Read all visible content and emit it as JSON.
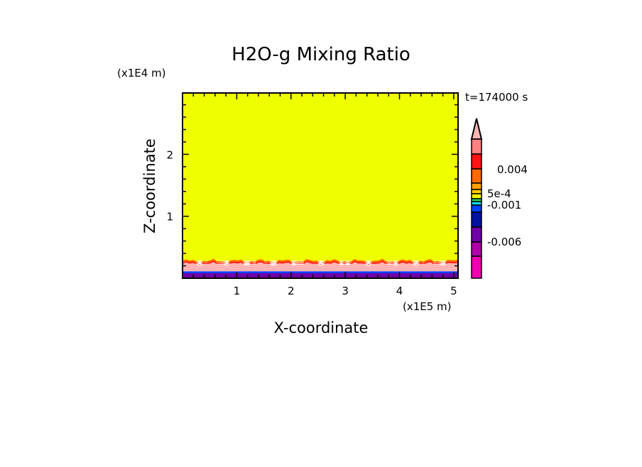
{
  "chart_data": {
    "type": "heatmap",
    "title": "H2O-g Mixing Ratio",
    "xlabel": "X-coordinate",
    "ylabel": "Z-coordinate",
    "x_unit": "(x1E5 m)",
    "y_unit": "(x1E4 m)",
    "time_label": "t=174000 s",
    "xlim": [
      0,
      5.08
    ],
    "ylim": [
      0,
      2.99
    ],
    "x_ticks": [
      "1",
      "2",
      "3",
      "4",
      "5"
    ],
    "y_ticks": [
      "1",
      "2"
    ],
    "colorbar": {
      "labels": [
        "0.004",
        "5e-4",
        "-0.001",
        "-0.006"
      ],
      "colors_top_to_bottom": [
        "#ffb4b4",
        "#ff8080",
        "#ff1414",
        "#ff6a00",
        "#ffa000",
        "#ffcc00",
        "#f0f000",
        "#20e060",
        "#10d8f0",
        "#0040ff",
        "#0010a0",
        "#7000a8",
        "#b000a8",
        "#f000b0"
      ]
    },
    "layers": [
      {
        "color": "#f0ff00",
        "z_from": 0.28,
        "z_to": 2.99
      },
      {
        "color": "#ff6a00",
        "z_from": 0.25,
        "z_to": 0.28
      },
      {
        "color": "#ff1414",
        "z_from": 0.23,
        "z_to": 0.25
      },
      {
        "color": "#ffb4b4",
        "z_from": 0.11,
        "z_to": 0.23
      },
      {
        "color": "#0040ff",
        "z_from": 0.08,
        "z_to": 0.11
      },
      {
        "color": "#7000a8",
        "z_from": 0.0,
        "z_to": 0.08
      }
    ]
  }
}
